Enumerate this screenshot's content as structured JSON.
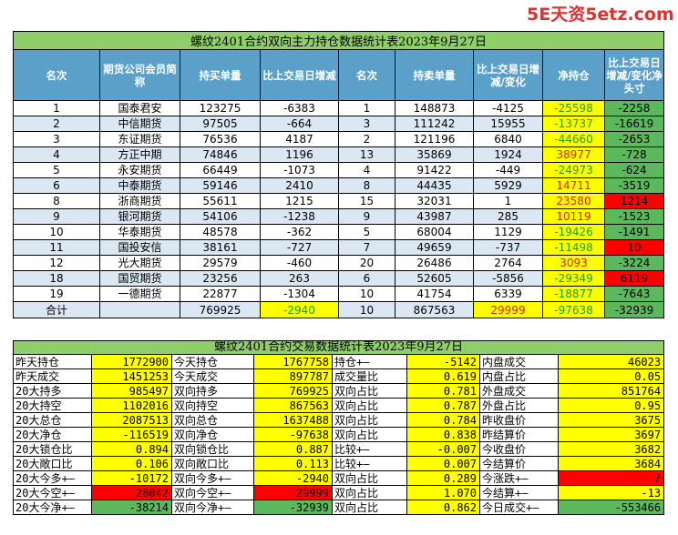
{
  "watermark": "5E天资5etz.com",
  "table1": {
    "title": "螺纹2401合约双向主力持仓数据统计表2023年9月27日",
    "headers": [
      "名次",
      "期货公司会员简称",
      "持买单量",
      "比上交易日增减",
      "名次",
      "持卖单量",
      "比上交易日增减/变化",
      "净持仓",
      "比上交易日增减/变化净头寸"
    ],
    "rows": [
      [
        "1",
        "国泰君安",
        "123275",
        "-6383",
        "1",
        "148873",
        "-4125",
        "-25598",
        "-2258"
      ],
      [
        "2",
        "中信期货",
        "97505",
        "-664",
        "3",
        "111242",
        "15955",
        "-13737",
        "-16619"
      ],
      [
        "3",
        "东证期货",
        "76536",
        "4187",
        "2",
        "121196",
        "6840",
        "-44660",
        "-2653"
      ],
      [
        "4",
        "方正中期",
        "74846",
        "1196",
        "13",
        "35869",
        "1924",
        "38977",
        "-728"
      ],
      [
        "5",
        "永安期货",
        "66449",
        "-1073",
        "4",
        "91422",
        "-449",
        "-24973",
        "-624"
      ],
      [
        "6",
        "中泰期货",
        "59146",
        "2410",
        "8",
        "44435",
        "5929",
        "14711",
        "-3519"
      ],
      [
        "8",
        "浙商期货",
        "55611",
        "1215",
        "15",
        "32031",
        "1",
        "23580",
        "1214"
      ],
      [
        "9",
        "银河期货",
        "54106",
        "-1238",
        "9",
        "43987",
        "285",
        "10119",
        "-1523"
      ],
      [
        "10",
        "华泰期货",
        "48578",
        "-362",
        "5",
        "68004",
        "1129",
        "-19426",
        "-1491"
      ],
      [
        "11",
        "国投安信",
        "38161",
        "-727",
        "7",
        "49659",
        "-737",
        "-11498",
        "10"
      ],
      [
        "12",
        "光大期货",
        "29579",
        "-460",
        "20",
        "26486",
        "2764",
        "3093",
        "-3224"
      ],
      [
        "18",
        "国贸期货",
        "23256",
        "263",
        "6",
        "52605",
        "-5856",
        "-29349",
        "6119"
      ],
      [
        "19",
        "一德期货",
        "22877",
        "-1304",
        "10",
        "41754",
        "6339",
        "-18877",
        "-7643"
      ]
    ],
    "sum": [
      "合计",
      "",
      "769925",
      "-2940",
      "10",
      "867563",
      "29999",
      "-97638",
      "-32939"
    ]
  },
  "table2": {
    "title": "螺纹2401合约交易数据统计表2023年9月27日",
    "rows": [
      [
        "昨天持仓",
        "1772900",
        "今天持仓",
        "1767758",
        "持仓+—",
        "-5142",
        "内盘成交",
        "46023"
      ],
      [
        "昨天成交",
        "1451253",
        "今天成交",
        "897787",
        "成交量比",
        "0.619",
        "内盘占比",
        "0.05"
      ],
      [
        "20大持多",
        "985497",
        "双向持多",
        "769925",
        "双向占比",
        "0.781",
        "外盘成交",
        "851764"
      ],
      [
        "20大持空",
        "1102016",
        "双向持空",
        "867563",
        "双向占比",
        "0.787",
        "外盘占比",
        "0.95"
      ],
      [
        "20大总仓",
        "2087513",
        "双向总仓",
        "1637488",
        "双向占比",
        "0.784",
        "昨收盘价",
        "3675"
      ],
      [
        "20大净仓",
        "-116519",
        "双向净仓",
        "-97638",
        "双向占比",
        "0.838",
        "昨结算价",
        "3697"
      ],
      [
        "20大锁仓比",
        "0.894",
        "双向锁仓比",
        "0.887",
        "比较+—",
        "-0.007",
        "今收盘价",
        "3682"
      ],
      [
        "20大敞口比",
        "0.106",
        "双向敞口比",
        "0.113",
        "比较+—",
        "0.007",
        "今结算价",
        "3684"
      ],
      [
        "20大今多+—",
        "-10172",
        "双向今多+—",
        "-2940",
        "双向占比",
        "0.289",
        "今涨跌+—",
        "7"
      ],
      [
        "20大今空+—",
        "28042",
        "双向今空+—",
        "29999",
        "双向占比",
        "1.070",
        "今结算+—",
        "-13"
      ],
      [
        "20大今净+—",
        "-38214",
        "双向今净+—",
        "-32939",
        "双向占比",
        "0.862",
        "今日成交+—",
        "-553466"
      ]
    ]
  },
  "colors": {
    "title_bg": "#8fce69",
    "header_bg": "#5aa0c8",
    "yellow": "#ffff00",
    "red": "#ff0000",
    "green": "#5cb85c"
  }
}
